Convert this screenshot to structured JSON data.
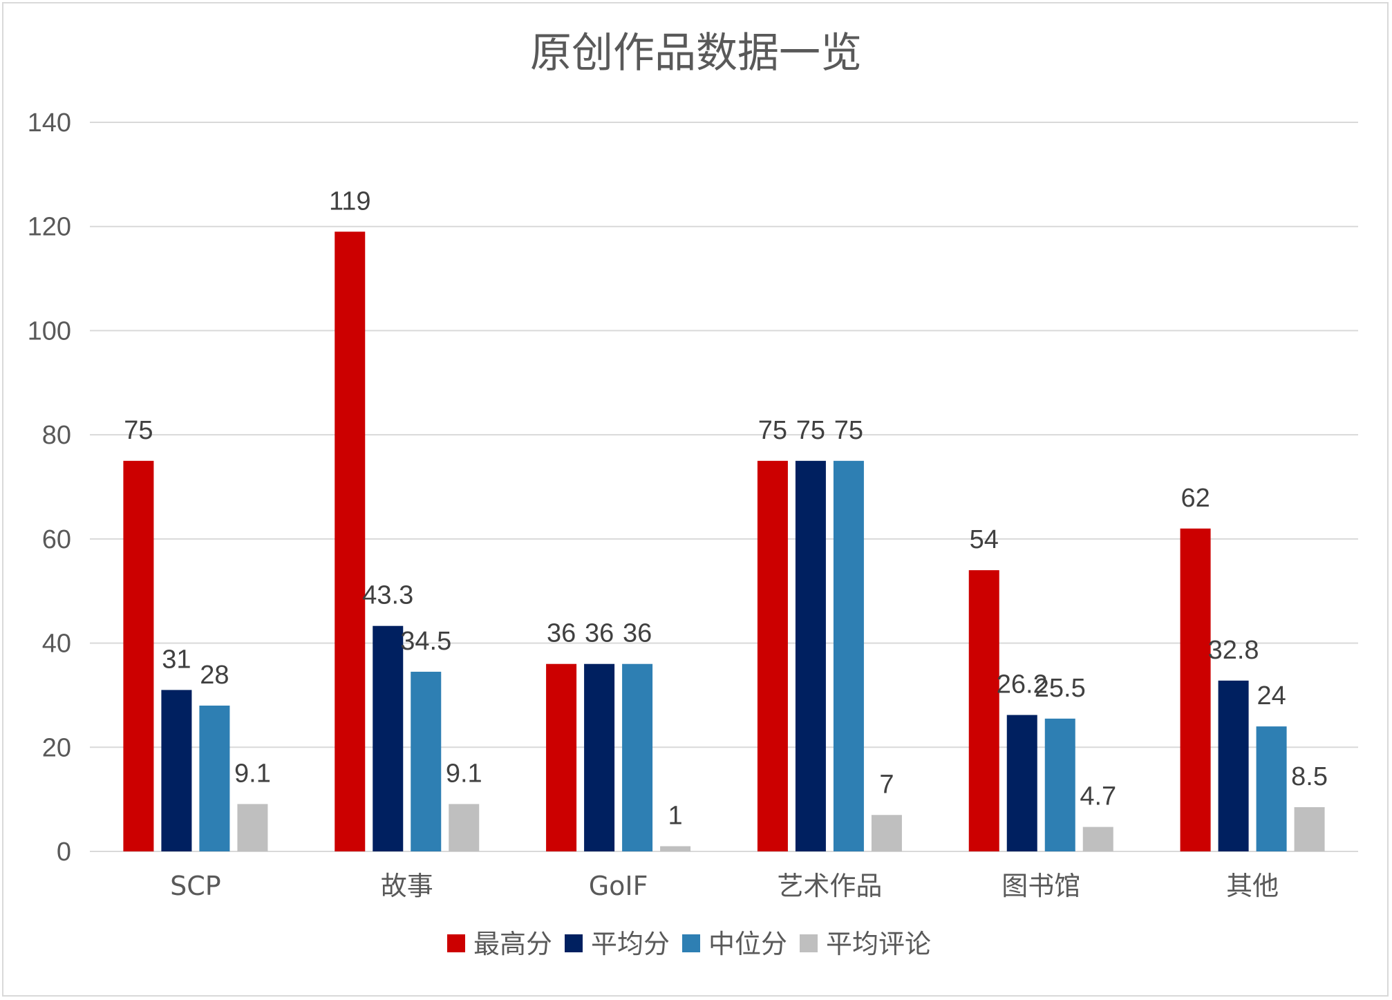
{
  "chart_data": {
    "type": "bar",
    "title": "原创作品数据一览",
    "categories": [
      "SCP",
      "故事",
      "GoIF",
      "艺术作品",
      "图书馆",
      "其他"
    ],
    "series": [
      {
        "name": "最高分",
        "color": "#cc0000",
        "values": [
          75,
          119,
          36,
          75,
          54,
          62
        ],
        "labels": [
          "75",
          "119",
          "36",
          "75",
          "54",
          "62"
        ]
      },
      {
        "name": "平均分",
        "color": "#002060",
        "values": [
          31,
          43.3,
          36,
          75,
          26.2,
          32.8
        ],
        "labels": [
          "31",
          "43.3",
          "36",
          "75",
          "26.2",
          "32.8"
        ]
      },
      {
        "name": "中位分",
        "color": "#2e7fb3",
        "values": [
          28,
          34.5,
          36,
          75,
          25.5,
          24
        ],
        "labels": [
          "28",
          "34.5",
          "36",
          "75",
          "25.5",
          "24"
        ]
      },
      {
        "name": "平均评论",
        "color": "#bfbfbf",
        "values": [
          9.1,
          9.1,
          1,
          7,
          4.7,
          8.5
        ],
        "labels": [
          "9.1",
          "9.1",
          "1",
          "7",
          "4.7",
          "8.5"
        ]
      }
    ],
    "ylim": [
      0,
      140
    ],
    "yticks": [
      "0",
      "20",
      "40",
      "60",
      "80",
      "100",
      "120",
      "140"
    ],
    "xlabel": "",
    "ylabel": "",
    "grid": true,
    "legend_position": "bottom"
  }
}
